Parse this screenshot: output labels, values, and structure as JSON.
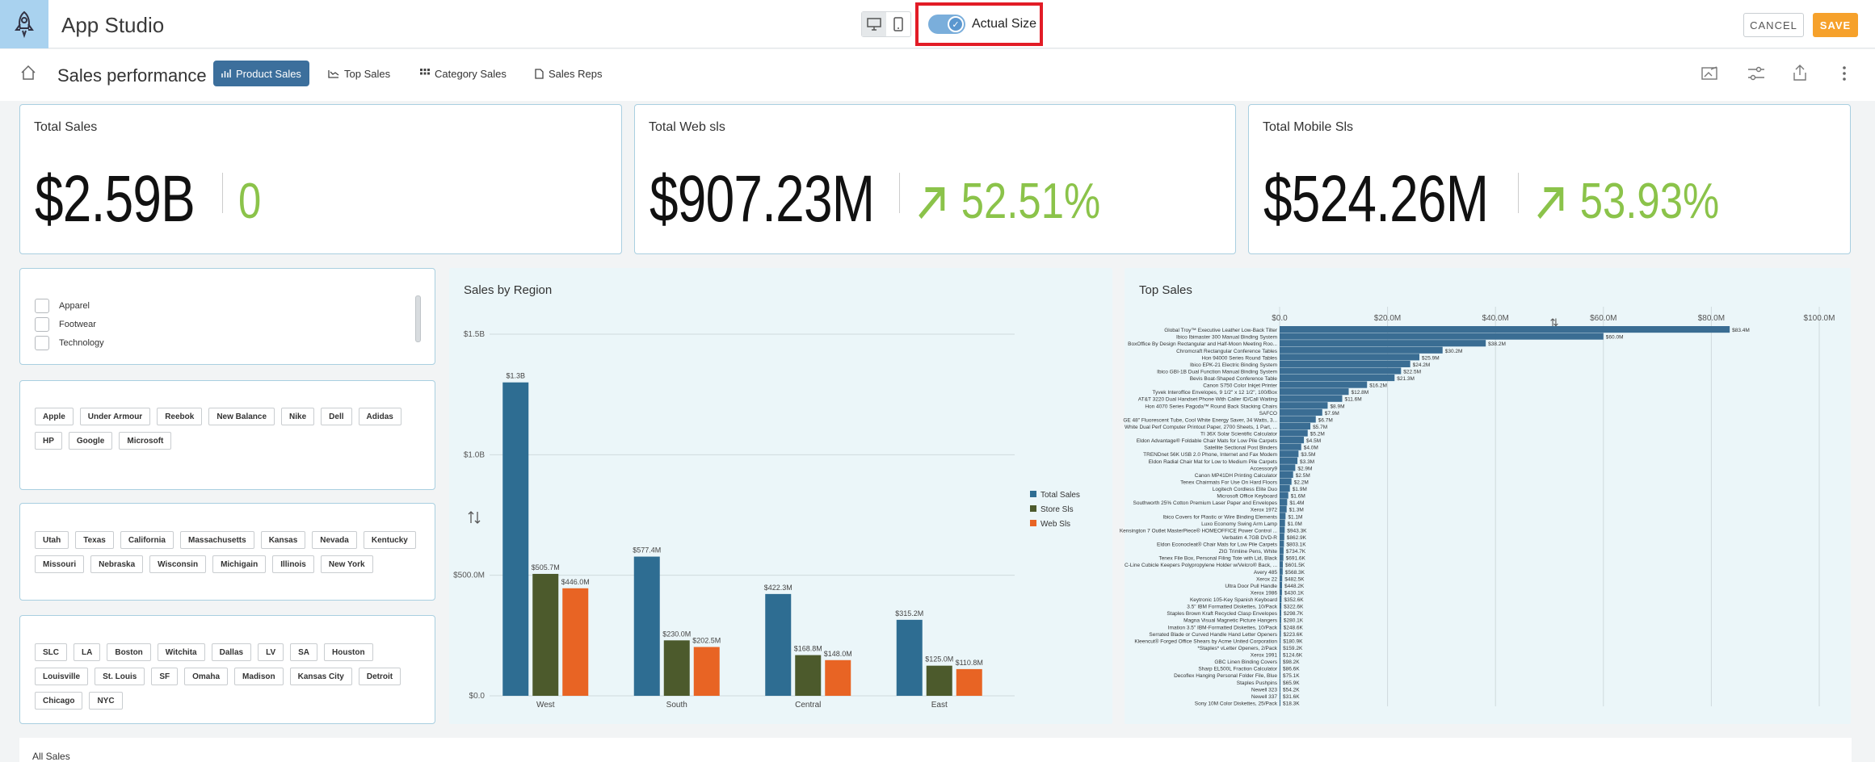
{
  "app": {
    "title": "App Studio"
  },
  "toolbar": {
    "actual_size_label": "Actual Size",
    "cancel_label": "CANCEL",
    "save_label": "SAVE"
  },
  "page": {
    "title": "Sales performance",
    "tabs": [
      {
        "label": "Product Sales",
        "icon": "chart-icon"
      },
      {
        "label": "Top Sales",
        "icon": "trend-icon"
      },
      {
        "label": "Category Sales",
        "icon": "grid-icon"
      },
      {
        "label": "Sales Reps",
        "icon": "document-icon"
      }
    ]
  },
  "kpis": [
    {
      "title": "Total Sales",
      "value": "$2.59B",
      "delta": "0"
    },
    {
      "title": "Total Web sls",
      "value": "$907.23M",
      "delta": "52.51%"
    },
    {
      "title": "Total Mobile Sls",
      "value": "$524.26M",
      "delta": "53.93%"
    }
  ],
  "filters": {
    "categories": [
      "Apparel",
      "Footwear",
      "Technology"
    ],
    "brands": [
      "Apple",
      "Under Armour",
      "Reebok",
      "New Balance",
      "Nike",
      "Dell",
      "Adidas",
      "HP",
      "Google",
      "Microsoft"
    ],
    "states": [
      "Utah",
      "Texas",
      "California",
      "Massachusetts",
      "Kansas",
      "Nevada",
      "Kentucky",
      "Missouri",
      "Nebraska",
      "Wisconsin",
      "Michigain",
      "Illinois",
      "New York"
    ],
    "cities": [
      "SLC",
      "LA",
      "Boston",
      "Witchita",
      "Dallas",
      "LV",
      "SA",
      "Houston",
      "Louisville",
      "St. Louis",
      "SF",
      "Omaha",
      "Madison",
      "Kansas City",
      "Detroit",
      "Chicago",
      "NYC"
    ]
  },
  "chart_data": [
    {
      "type": "bar",
      "title": "Sales by Region",
      "categories": [
        "West",
        "South",
        "Central",
        "East"
      ],
      "series": [
        {
          "name": "Total Sales",
          "color": "#2e6d92",
          "values": [
            1300000000,
            577400000,
            422300000,
            315200000
          ],
          "labels": [
            "$1.3B",
            "$577.4M",
            "$422.3M",
            "$315.2M"
          ]
        },
        {
          "name": "Store Sls",
          "color": "#4c5a2c",
          "values": [
            505700000,
            230000000,
            168800000,
            125000000
          ],
          "labels": [
            "$505.7M",
            "$230.0M",
            "$168.8M",
            "$125.0M"
          ]
        },
        {
          "name": "Web Sls",
          "color": "#e86424",
          "values": [
            446000000,
            202500000,
            148000000,
            110800000
          ],
          "labels": [
            "$446.0M",
            "$202.5M",
            "$148.0M",
            "$110.8M"
          ]
        }
      ],
      "yticks": [
        "$0.0",
        "$500.0M",
        "$1.0B",
        "$1.5B"
      ],
      "ylim": [
        0,
        1500000000
      ],
      "legend": "right",
      "grid": true
    },
    {
      "type": "bar",
      "title": "Top Sales",
      "orientation": "horizontal",
      "xticks": [
        "$0.0",
        "$20.0M",
        "$40.0M",
        "$60.0M",
        "$80.0M",
        "$100.0M"
      ],
      "xlim": [
        0,
        100000000
      ],
      "categories": [
        "Global Troy™ Executive Leather Low-Back Tilter",
        "Ibico Ibimaster 300 Manual Binding System",
        "BoxOffice By Design Rectangular and Half-Moon Meeting Roo...",
        "Chromcraft Rectangular Conference Tables",
        "Hon 94000 Series Round Tables",
        "Ibico EPK-21 Electric Binding System",
        "Ibico GBI-1B Dual Function Manual Binding System",
        "Bevis Boat-Shaped Conference Table",
        "Canon S750 Color Inkjet Printer",
        "Tyvek Interoffice Envelopes, 9 1/2\" x 12 1/2\", 100/Box",
        "AT&T 3220 Dual Handset Phone With Caller ID/Call Waiting",
        "Hon 4070 Series Pagoda™ Round Back Stacking Chairs",
        "SAFCO",
        "GE 48\" Fluorescent Tube, Cool White Energy Saver, 34 Watts, 3...",
        "White Dual Perf Computer Printout Paper, 2700 Sheets, 1 Part, ...",
        "TI 36X Solar Scientific Calculator",
        "Eldon Advantage® Foldable Chair Mats for Low Pile Carpets",
        "Satellite Sectional Post Binders",
        "TRENDnet 56K USB 2.0 Phone, Internet and Fax Modem",
        "Eldon Radial Chair Mat for Low to Medium Pile Carpets",
        "Accessory9",
        "Canon MP41DH Printing Calculator",
        "Tenex Chairmats For Use On Hard Floors",
        "Logitech Cordless Elite Duo",
        "Microsoft Office Keyboard",
        "Southworth 25% Cotton Premium Laser Paper and Envelopes",
        "Xerox 1972",
        "Ibico Covers for Plastic or Wire Binding Elements",
        "Luxo Economy Swing Arm Lamp",
        "Kensington 7 Outlet MasterPiece® HOMEOFFICE Power Control ...",
        "Verbatim 4.7GB DVD-R",
        "Eldon Econocleat® Chair Mats for Low Pile Carpets",
        "ZIG Trimline Pens, White",
        "Tenex File Box, Personal Filing Tote with Lid, Black",
        "C-Line Cubicle Keepers Polypropylene Holder w/Velcro® Back, ...",
        "Avery 485",
        "Xerox 22",
        "Ultra Door Pull Handle",
        "Xerox 1986",
        "Keytronic 105-Key Spanish Keyboard",
        "3.5\" IBM Formatted Diskettes, 10/Pack",
        "Staples Brown Kraft Recycled Clasp Envelopes",
        "Magna Visual Magnetic Picture Hangers",
        "Imation 3.5\" IBM-Formatted Diskettes, 10/Pack",
        "Serrated Blade or Curved Handle Hand Letter Openers",
        "Kleencut® Forged Office Shears by Acme United Corporation",
        "*Staples* vLetter Openers, 2/Pack",
        "Xerox 1991",
        "GBC Linen Binding Covers",
        "Sharp EL500L Fraction Calculator",
        "Decoflex Hanging Personal Folder File, Blue",
        "Staples Pushpins",
        "Newell 323",
        "Newell 337",
        "Sony 10M Color Diskettes, 25/Pack"
      ],
      "value_labels": [
        "$83.4M",
        "$60.0M",
        "$38.2M",
        "$30.2M",
        "$25.9M",
        "$24.2M",
        "$22.5M",
        "$21.3M",
        "$16.2M",
        "$12.8M",
        "$11.6M",
        "$8.9M",
        "$7.9M",
        "$6.7M",
        "$5.7M",
        "$5.2M",
        "$4.5M",
        "$4.0M",
        "$3.5M",
        "$3.3M",
        "$2.9M",
        "$2.5M",
        "$2.2M",
        "$1.9M",
        "$1.6M",
        "$1.4M",
        "$1.3M",
        "$1.1M",
        "$1.0M",
        "$943.3K",
        "$862.9K",
        "$803.1K",
        "$734.7K",
        "$691.6K",
        "$601.5K",
        "$568.3K",
        "$482.5K",
        "$448.2K",
        "$430.1K",
        "$352.6K",
        "$322.6K",
        "$298.7K",
        "$280.1K",
        "$248.6K",
        "$223.6K",
        "$180.9K",
        "$159.2K",
        "$124.6K",
        "$98.2K",
        "$86.6K",
        "$75.1K",
        "$65.9K",
        "$54.2K",
        "$31.6K",
        "$18.3K"
      ],
      "values": [
        83400000,
        60000000,
        38200000,
        30200000,
        25900000,
        24200000,
        22500000,
        21300000,
        16200000,
        12800000,
        11600000,
        8900000,
        7900000,
        6700000,
        5700000,
        5200000,
        4500000,
        4000000,
        3500000,
        3300000,
        2900000,
        2500000,
        2200000,
        1900000,
        1600000,
        1400000,
        1300000,
        1100000,
        1000000,
        943300,
        862900,
        803100,
        734700,
        691600,
        601500,
        568300,
        482500,
        448200,
        430100,
        352600,
        322600,
        298700,
        280100,
        248600,
        223600,
        180900,
        159200,
        124600,
        98200,
        86600,
        75100,
        65900,
        54200,
        31600,
        18300
      ]
    }
  ],
  "bottom": {
    "title": "All Sales"
  }
}
